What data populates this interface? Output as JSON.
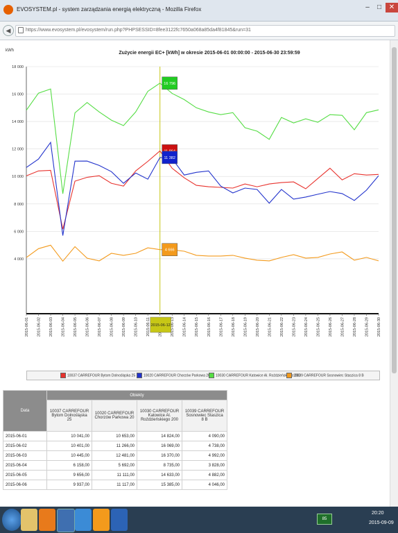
{
  "window": {
    "title": "EVOSYSTEM.pl - system zarządzania energią elektryczną - Mozilla Firefox",
    "minimize": "–",
    "maximize": "□",
    "close": "✕"
  },
  "urlbar": {
    "url": "https://www.evosystem.pl/evosystem/run.php?PHPSESSID=8fee3122fc7650a068a85da4f81845&run=31"
  },
  "chart_data": {
    "type": "line",
    "title": "Zużycie energii EC+ [kWh] w okresie 2015-06-01 00:00:00 - 2015-06-30 23:59:59",
    "ylabel": "kWh",
    "ylim": [
      0,
      18000
    ],
    "yticks": [
      "18 000",
      "16 000",
      "14 000",
      "12 000",
      "10 000",
      "8 000",
      "6 000",
      "4 000"
    ],
    "categories": [
      "2015-06-01",
      "2015-06-02",
      "2015-06-03",
      "2015-06-04",
      "2015-06-05",
      "2015-06-06",
      "2015-06-07",
      "2015-06-08",
      "2015-06-09",
      "2015-06-10",
      "2015-06-11",
      "2015-06-12",
      "2015-06-13",
      "2015-06-14",
      "2015-06-15",
      "2015-06-16",
      "2015-06-17",
      "2015-06-18",
      "2015-06-19",
      "2015-06-20",
      "2015-06-21",
      "2015-06-22",
      "2015-06-23",
      "2015-06-24",
      "2015-06-25",
      "2015-06-26",
      "2015-06-27",
      "2015-06-28",
      "2015-06-29",
      "2015-06-30"
    ],
    "series": [
      {
        "name": "10037 CARREFOUR Bytom Dolnośląska 25",
        "color": "#e8322d",
        "values": [
          10041,
          10401,
          10445,
          6158,
          9656,
          9937,
          10050,
          9500,
          9300,
          10400,
          11100,
          11864,
          10600,
          9900,
          9350,
          9250,
          9200,
          9150,
          9450,
          9250,
          9450,
          9550,
          9600,
          9100,
          9850,
          10600,
          9750,
          10200,
          10100,
          10150
        ]
      },
      {
        "name": "10020 CARREFOUR Chorzów Parkowa 20",
        "color": "#2233cc",
        "values": [
          10653,
          11266,
          12481,
          5692,
          11111,
          11117,
          10800,
          10350,
          9500,
          10250,
          9800,
          11382,
          11300,
          10100,
          10300,
          10400,
          9300,
          8800,
          9150,
          9050,
          8050,
          9050,
          8350,
          8500,
          8700,
          8900,
          8750,
          8250,
          9000,
          10050
        ]
      },
      {
        "name": "10030 CARREFOUR Katowice Al. Roździeńskiego 200",
        "color": "#55dd44",
        "values": [
          14824,
          16069,
          16370,
          8735,
          14633,
          15385,
          14700,
          14100,
          13700,
          14700,
          16200,
          16796,
          16050,
          15600,
          15000,
          14700,
          14500,
          14650,
          13550,
          13300,
          12700,
          14300,
          13900,
          14200,
          13950,
          14500,
          14450,
          13400,
          14650,
          14850
        ]
      },
      {
        "name": "10039 CARREFOUR Sosnowiec Staszica 8 B",
        "color": "#f39a1c",
        "values": [
          4090,
          4738,
          4992,
          3828,
          4882,
          4046,
          3850,
          4400,
          4250,
          4400,
          4800,
          4666,
          4650,
          4550,
          4250,
          4200,
          4200,
          4250,
          4050,
          3900,
          3850,
          4100,
          4300,
          4050,
          4100,
          4350,
          4500,
          3900,
          4100,
          3850
        ]
      }
    ],
    "crosshair_label": "2015-06-12",
    "tooltip_values": [
      "16 796",
      "11 864",
      "11 382",
      "4 666"
    ]
  },
  "table": {
    "group_header": "Obiekty",
    "date_header": "Data",
    "columns": [
      "10037 CARREFOUR Bytom Dolnośląska 25",
      "10020 CARREFOUR Chorzów Parkowa 20",
      "10030 CARREFOUR Katowice Al. Roździeńskiego 200",
      "10039 CARREFOUR Sosnowiec Staszica 8 B"
    ],
    "rows": [
      [
        "2015-06-01",
        "10 041,00",
        "10 653,00",
        "14 824,00",
        "4 090,00"
      ],
      [
        "2015-06-02",
        "10 401,00",
        "11 266,00",
        "16 069,00",
        "4 738,00"
      ],
      [
        "2015-06-03",
        "10 445,00",
        "12 481,00",
        "16 370,00",
        "4 992,00"
      ],
      [
        "2015-06-04",
        "6 158,00",
        "5 692,00",
        "8 735,00",
        "3 828,00"
      ],
      [
        "2015-06-05",
        "9 656,00",
        "11 111,00",
        "14 633,00",
        "4 882,00"
      ],
      [
        "2015-06-06",
        "9 937,00",
        "11 117,00",
        "15 385,00",
        "4 046,00"
      ]
    ]
  },
  "taskbar": {
    "tray_indicator": "85",
    "time": "20:20",
    "date": "2015-09-09"
  },
  "colors": {
    "crosshair": "#c7c716",
    "tooltip_green": "#22cc22",
    "tooltip_red": "#cc1111",
    "tooltip_blue": "#1122cc",
    "tooltip_orange": "#f39a1c"
  }
}
